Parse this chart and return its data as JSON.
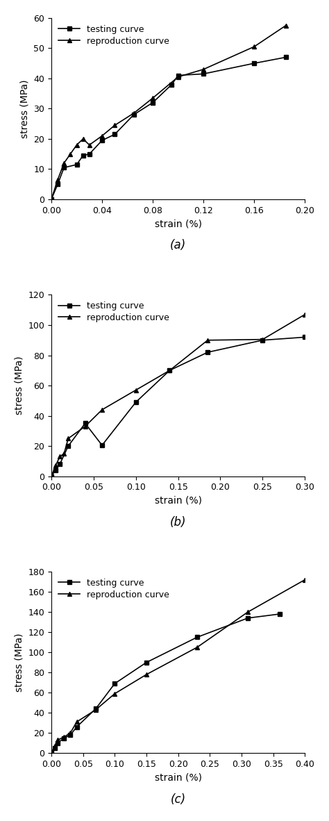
{
  "panels": [
    {
      "label": "(a)",
      "xlabel": "strain (%)",
      "ylabel": "stress (MPa)",
      "xlim": [
        0.0,
        0.2
      ],
      "ylim": [
        0,
        60
      ],
      "xticks": [
        0.0,
        0.04,
        0.08,
        0.12,
        0.16,
        0.2
      ],
      "yticks": [
        0,
        10,
        20,
        30,
        40,
        50,
        60
      ],
      "testing": {
        "x": [
          0.0,
          0.005,
          0.01,
          0.02,
          0.025,
          0.03,
          0.04,
          0.05,
          0.065,
          0.08,
          0.095,
          0.1,
          0.12,
          0.16,
          0.185
        ],
        "y": [
          0.0,
          5.0,
          10.5,
          11.5,
          14.5,
          15.0,
          19.5,
          21.5,
          28.0,
          32.0,
          38.0,
          41.0,
          41.5,
          45.0,
          47.0
        ]
      },
      "reproduction": {
        "x": [
          0.0,
          0.005,
          0.01,
          0.015,
          0.02,
          0.025,
          0.03,
          0.04,
          0.05,
          0.065,
          0.08,
          0.1,
          0.12,
          0.16,
          0.185
        ],
        "y": [
          0.0,
          6.5,
          12.0,
          15.0,
          18.0,
          20.0,
          18.0,
          21.0,
          24.5,
          28.5,
          33.5,
          40.5,
          43.0,
          50.5,
          57.5
        ]
      }
    },
    {
      "label": "(b)",
      "xlabel": "strain (%)",
      "ylabel": "stress (MPa)",
      "xlim": [
        0.0,
        0.3
      ],
      "ylim": [
        0,
        120
      ],
      "xticks": [
        0.0,
        0.05,
        0.1,
        0.15,
        0.2,
        0.25,
        0.3
      ],
      "yticks": [
        0,
        20,
        40,
        60,
        80,
        100,
        120
      ],
      "testing": {
        "x": [
          0.0,
          0.005,
          0.01,
          0.02,
          0.04,
          0.06,
          0.1,
          0.14,
          0.185,
          0.25,
          0.3
        ],
        "y": [
          0.0,
          4.0,
          8.0,
          20.0,
          35.0,
          20.5,
          49.0,
          70.0,
          82.0,
          90.0,
          92.0
        ]
      },
      "reproduction": {
        "x": [
          0.0,
          0.005,
          0.01,
          0.015,
          0.02,
          0.04,
          0.06,
          0.1,
          0.14,
          0.185,
          0.25,
          0.3
        ],
        "y": [
          0.0,
          7.0,
          13.0,
          15.0,
          25.0,
          33.0,
          44.0,
          57.0,
          70.0,
          90.0,
          90.5,
          107.0
        ]
      }
    },
    {
      "label": "(c)",
      "xlabel": "strain (%)",
      "ylabel": "stress (MPa)",
      "xlim": [
        0.0,
        0.4
      ],
      "ylim": [
        0,
        180
      ],
      "xticks": [
        0.0,
        0.05,
        0.1,
        0.15,
        0.2,
        0.25,
        0.3,
        0.35,
        0.4
      ],
      "yticks": [
        0,
        20,
        40,
        60,
        80,
        100,
        120,
        140,
        160,
        180
      ],
      "testing": {
        "x": [
          0.0,
          0.005,
          0.01,
          0.02,
          0.03,
          0.04,
          0.07,
          0.1,
          0.15,
          0.23,
          0.31,
          0.36
        ],
        "y": [
          0.0,
          5.0,
          10.0,
          15.0,
          18.0,
          26.0,
          44.0,
          69.0,
          90.0,
          115.0,
          134.0,
          138.0
        ]
      },
      "reproduction": {
        "x": [
          0.0,
          0.005,
          0.01,
          0.02,
          0.03,
          0.04,
          0.07,
          0.1,
          0.15,
          0.23,
          0.31,
          0.4
        ],
        "y": [
          0.0,
          7.0,
          13.0,
          16.0,
          20.0,
          31.0,
          43.0,
          59.0,
          78.0,
          105.0,
          140.0,
          172.0
        ]
      }
    }
  ],
  "line_color": "#000000",
  "marker_square": "s",
  "marker_triangle": "^",
  "markersize": 5,
  "linewidth": 1.2,
  "legend_testing": "testing curve",
  "legend_reproduction": "reproduction curve",
  "font_size_labels": 10,
  "font_size_ticks": 9,
  "font_size_legend": 9,
  "font_size_panel_label": 12
}
